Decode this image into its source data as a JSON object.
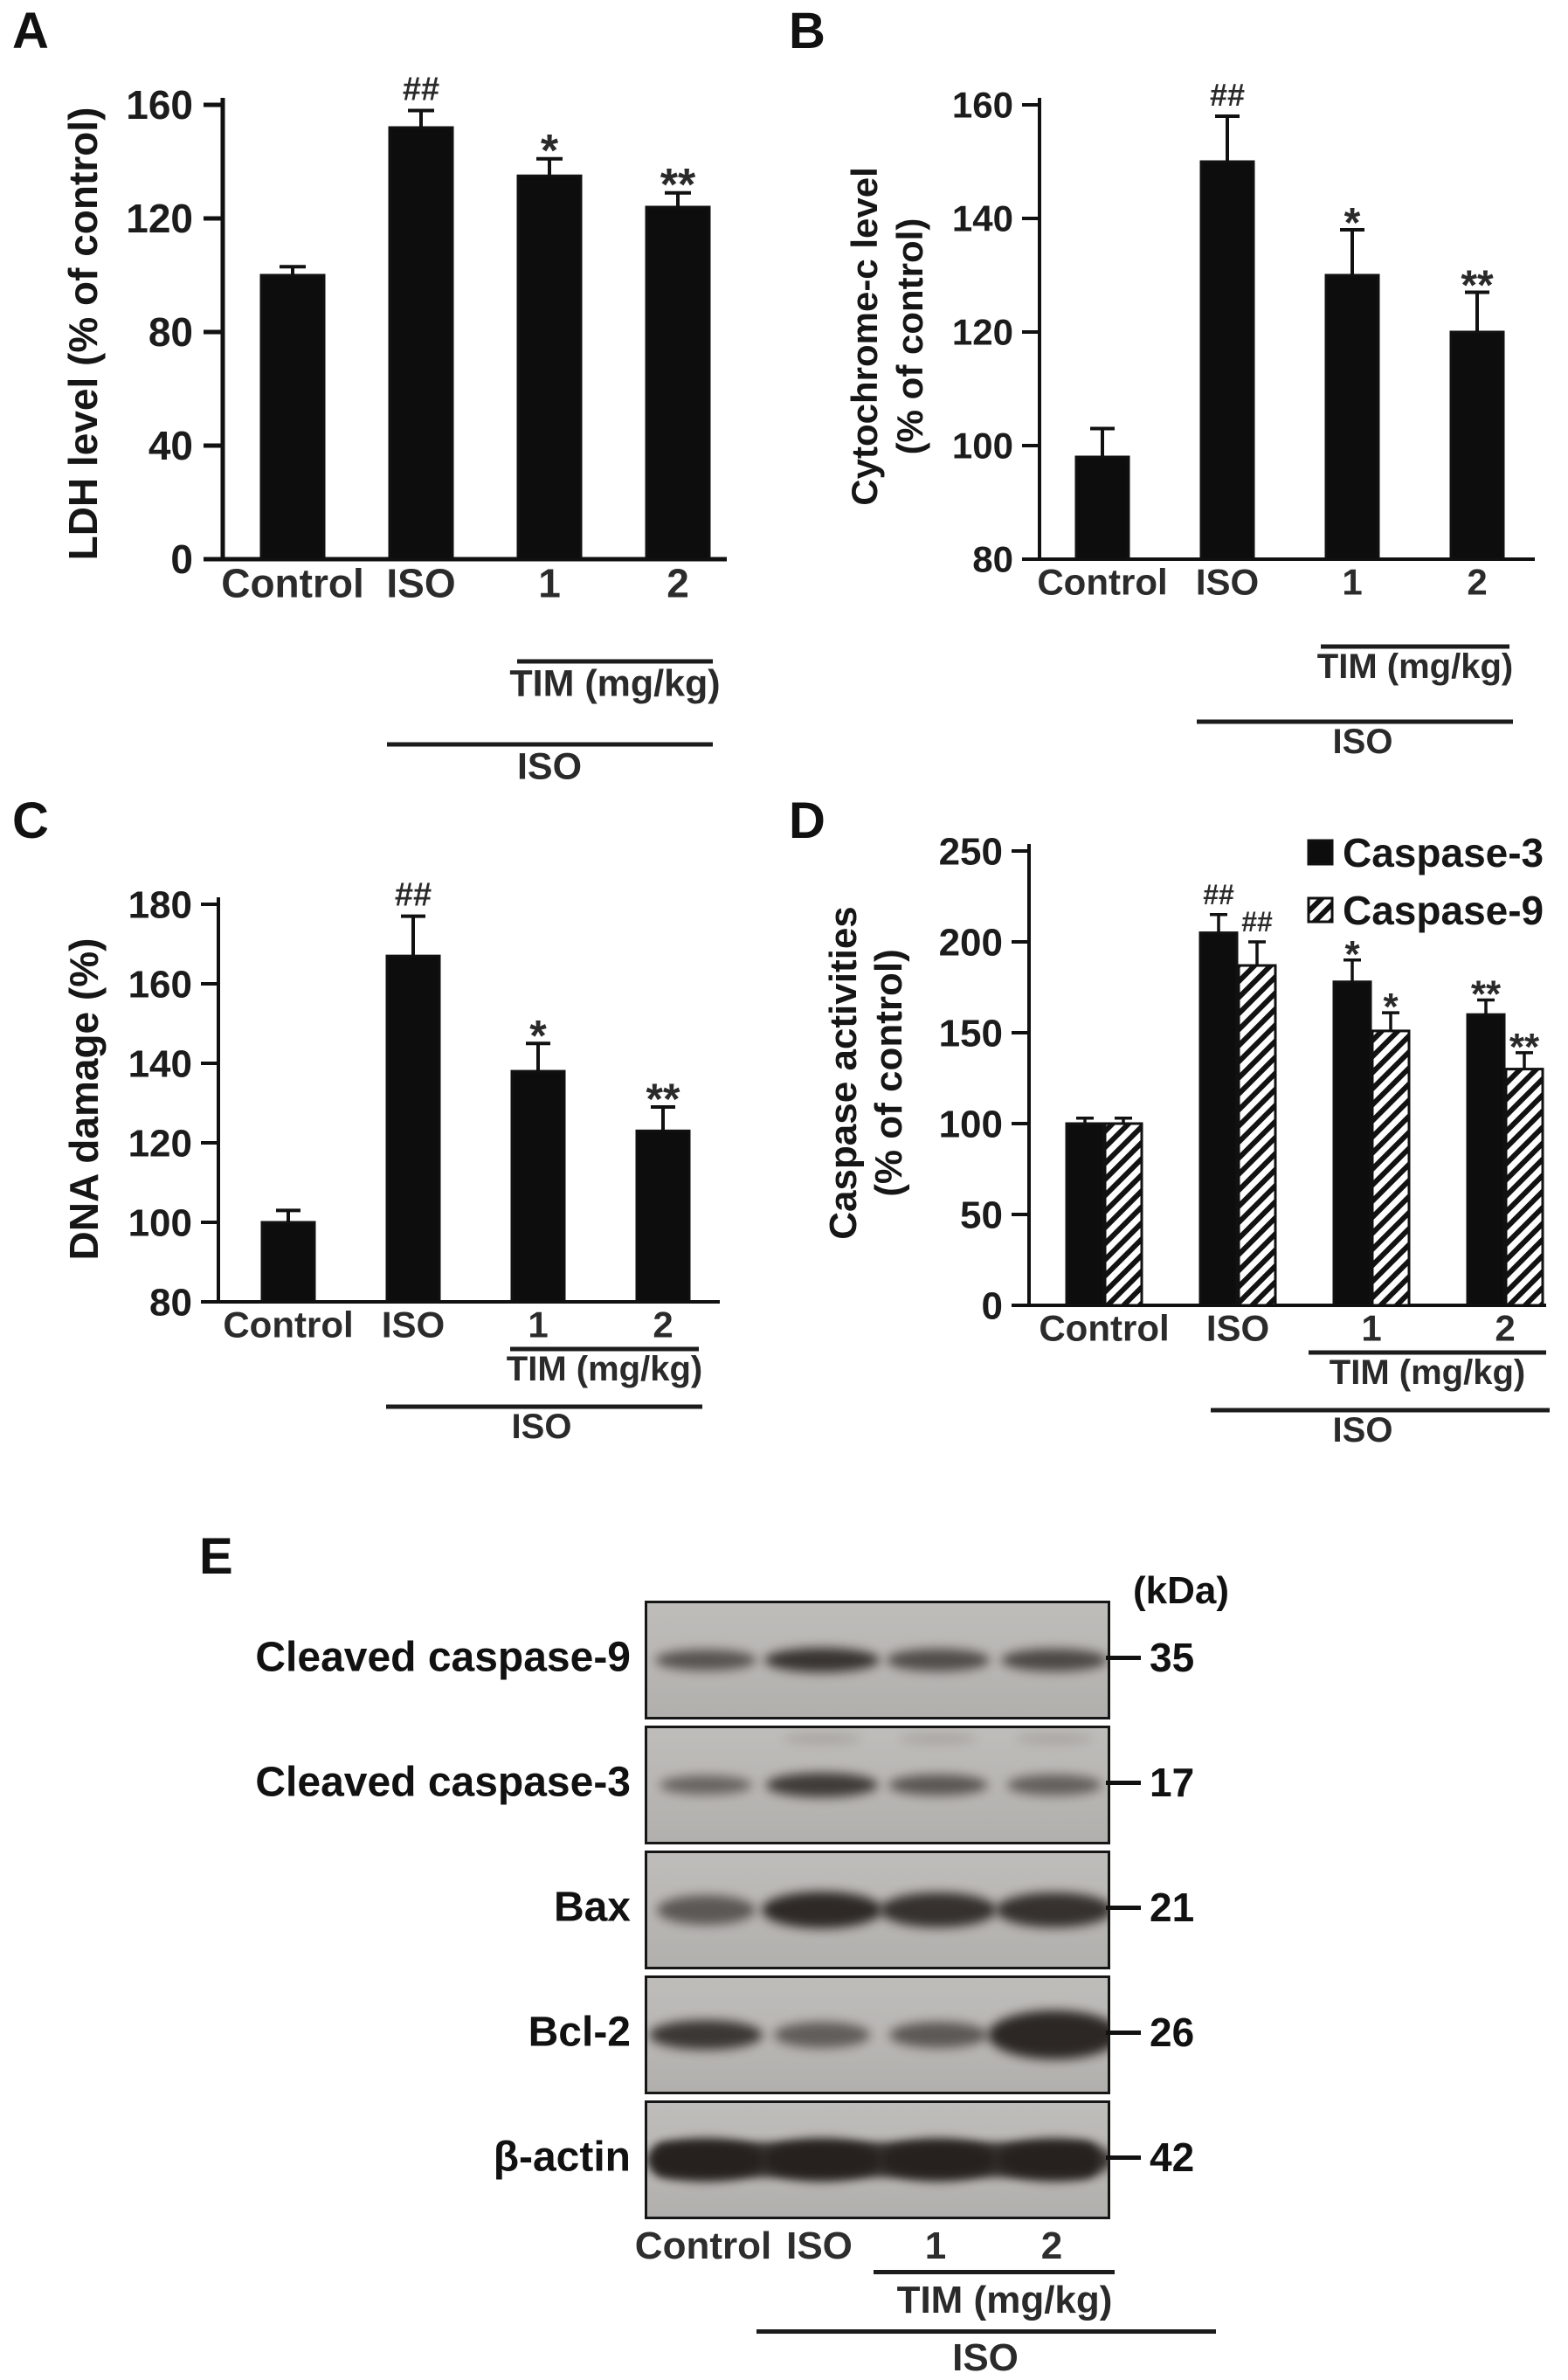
{
  "figure_type": "multi-panel scientific figure",
  "chart_data": [
    {
      "panel_letter": "A",
      "type": "bar",
      "title": "",
      "xlabel": "",
      "ylabel": "LDH level (% of control)",
      "categories": [
        "Control",
        "ISO",
        "1",
        "2"
      ],
      "yticks": [
        0,
        40,
        80,
        120,
        160
      ],
      "ylim": [
        0,
        160
      ],
      "grid": false,
      "series": [
        {
          "name": "LDH level",
          "style": "solid",
          "values": [
            100,
            152,
            135,
            124
          ],
          "errors": [
            3,
            6,
            6,
            5
          ],
          "sig": [
            "",
            "##",
            "*",
            "**"
          ]
        }
      ],
      "group_annotations": {
        "tim_label": "TIM (mg/kg)",
        "iso_label": "ISO"
      }
    },
    {
      "panel_letter": "B",
      "type": "bar",
      "title": "",
      "xlabel": "",
      "ylabel": "Cytochrome-c level\n(% of control)",
      "categories": [
        "Control",
        "ISO",
        "1",
        "2"
      ],
      "yticks": [
        80,
        100,
        120,
        140,
        160
      ],
      "ylim": [
        80,
        160
      ],
      "grid": false,
      "series": [
        {
          "name": "Cytochrome-c level",
          "style": "solid",
          "values": [
            98,
            150,
            130,
            120
          ],
          "errors": [
            5,
            8,
            8,
            7
          ],
          "sig": [
            "",
            "##",
            "*",
            "**"
          ]
        }
      ],
      "group_annotations": {
        "tim_label": "TIM (mg/kg)",
        "iso_label": "ISO"
      }
    },
    {
      "panel_letter": "C",
      "type": "bar",
      "title": "",
      "xlabel": "",
      "ylabel": "DNA damage (%)",
      "categories": [
        "Control",
        "ISO",
        "1",
        "2"
      ],
      "yticks": [
        80,
        100,
        120,
        140,
        160,
        180
      ],
      "ylim": [
        80,
        180
      ],
      "grid": false,
      "series": [
        {
          "name": "DNA damage",
          "style": "solid",
          "values": [
            100,
            167,
            138,
            123
          ],
          "errors": [
            3,
            10,
            7,
            6
          ],
          "sig": [
            "",
            "##",
            "*",
            "**"
          ]
        }
      ],
      "group_annotations": {
        "tim_label": "TIM (mg/kg)",
        "iso_label": "ISO"
      }
    },
    {
      "panel_letter": "D",
      "type": "bar",
      "title": "",
      "xlabel": "",
      "ylabel": "Caspase activities\n(% of control)",
      "categories": [
        "Control",
        "ISO",
        "1",
        "2"
      ],
      "yticks": [
        0,
        50,
        100,
        150,
        200,
        250
      ],
      "ylim": [
        0,
        250
      ],
      "grid": false,
      "legend": {
        "position": "top-right",
        "entries": [
          "Caspase-3",
          "Caspase-9"
        ]
      },
      "series": [
        {
          "name": "Caspase-3",
          "style": "solid",
          "values": [
            100,
            205,
            178,
            160
          ],
          "errors": [
            3,
            10,
            12,
            8
          ],
          "sig": [
            "",
            "##",
            "*",
            "**"
          ]
        },
        {
          "name": "Caspase-9",
          "style": "hatch",
          "values": [
            100,
            187,
            151,
            130
          ],
          "errors": [
            3,
            13,
            10,
            9
          ],
          "sig": [
            "",
            "##",
            "*",
            "**"
          ]
        }
      ],
      "group_annotations": {
        "tim_label": "TIM (mg/kg)",
        "iso_label": "ISO"
      }
    }
  ],
  "blot": {
    "panel_letter": "E",
    "kda_header": "(kDa)",
    "rows": [
      {
        "label": "Cleaved caspase-9",
        "kda": "35",
        "bands": [
          0.55,
          0.85,
          0.6,
          0.65
        ]
      },
      {
        "label": "Cleaved caspase-3",
        "kda": "17",
        "bands": [
          0.38,
          0.78,
          0.52,
          0.42
        ]
      },
      {
        "label": "Bax",
        "kda": "21",
        "bands": [
          0.5,
          0.95,
          0.88,
          0.88
        ]
      },
      {
        "label": "Bcl-2",
        "kda": "26",
        "bands": [
          0.82,
          0.45,
          0.5,
          0.97
        ]
      },
      {
        "label": "β-actin",
        "kda": "42",
        "bands": [
          0.92,
          0.92,
          0.9,
          0.9
        ],
        "continuous": true
      }
    ],
    "lane_labels": [
      "Control",
      "ISO",
      "1",
      "2"
    ],
    "tim_label": "TIM (mg/kg)",
    "iso_label": "ISO"
  }
}
